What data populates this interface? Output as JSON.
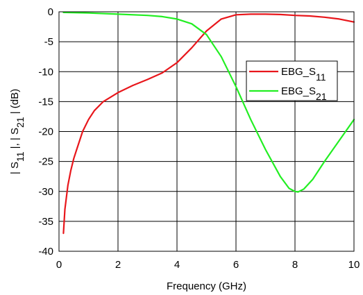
{
  "chart_data": {
    "type": "line",
    "xlabel": "Frequency (GHz)",
    "ylabel": {
      "parts": [
        {
          "text": "| S",
          "sub": false
        },
        {
          "text": "11",
          "sub": true
        },
        {
          "text": " |, | S",
          "sub": false
        },
        {
          "text": "21",
          "sub": true
        },
        {
          "text": " | (dB)",
          "sub": false
        }
      ]
    },
    "xlim": [
      0,
      10
    ],
    "ylim": [
      -40,
      0
    ],
    "xticks": [
      0,
      2,
      4,
      6,
      8,
      10
    ],
    "yticks": [
      0,
      -5,
      -10,
      -15,
      -20,
      -25,
      -30,
      -35,
      -40
    ],
    "xtick_labels": [
      "0",
      "2",
      "4",
      "6",
      "8",
      "10"
    ],
    "ytick_labels": [
      "0",
      "-5",
      "-10",
      "-15",
      "-20",
      "-25",
      "-30",
      "-35",
      "-40"
    ],
    "grid": true,
    "legend_position": "right",
    "series": [
      {
        "name": "EBG_S11",
        "label_parts": [
          {
            "text": "EBG_S",
            "sub": false
          },
          {
            "text": "11",
            "sub": true
          }
        ],
        "color": "#e8161b",
        "x": [
          0.15,
          0.2,
          0.3,
          0.4,
          0.5,
          0.6,
          0.8,
          1.0,
          1.2,
          1.5,
          2.0,
          2.5,
          3.0,
          3.5,
          4.0,
          4.5,
          5.0,
          5.5,
          6.0,
          6.5,
          7.0,
          7.5,
          8.0,
          8.5,
          9.0,
          9.5,
          10.0
        ],
        "y": [
          -37.0,
          -33.0,
          -29.0,
          -26.5,
          -24.5,
          -23.0,
          -20.0,
          -18.0,
          -16.5,
          -15.0,
          -13.5,
          -12.3,
          -11.3,
          -10.2,
          -8.5,
          -6.0,
          -3.2,
          -1.2,
          -0.5,
          -0.4,
          -0.4,
          -0.45,
          -0.6,
          -0.7,
          -0.9,
          -1.2,
          -1.7
        ]
      },
      {
        "name": "EBG_S21",
        "label_parts": [
          {
            "text": "EBG_S",
            "sub": false
          },
          {
            "text": "21",
            "sub": true
          }
        ],
        "color": "#22ee22",
        "x": [
          0.15,
          1.0,
          2.0,
          3.0,
          3.5,
          4.0,
          4.5,
          5.0,
          5.5,
          6.0,
          6.5,
          7.0,
          7.5,
          7.8,
          8.0,
          8.1,
          8.3,
          8.6,
          9.0,
          9.5,
          10.0
        ],
        "y": [
          -0.1,
          -0.2,
          -0.4,
          -0.6,
          -0.8,
          -1.2,
          -2.0,
          -3.8,
          -7.5,
          -12.5,
          -18.0,
          -23.0,
          -27.5,
          -29.5,
          -30.0,
          -30.1,
          -29.6,
          -28.0,
          -25.0,
          -21.5,
          -18.0
        ]
      }
    ]
  }
}
